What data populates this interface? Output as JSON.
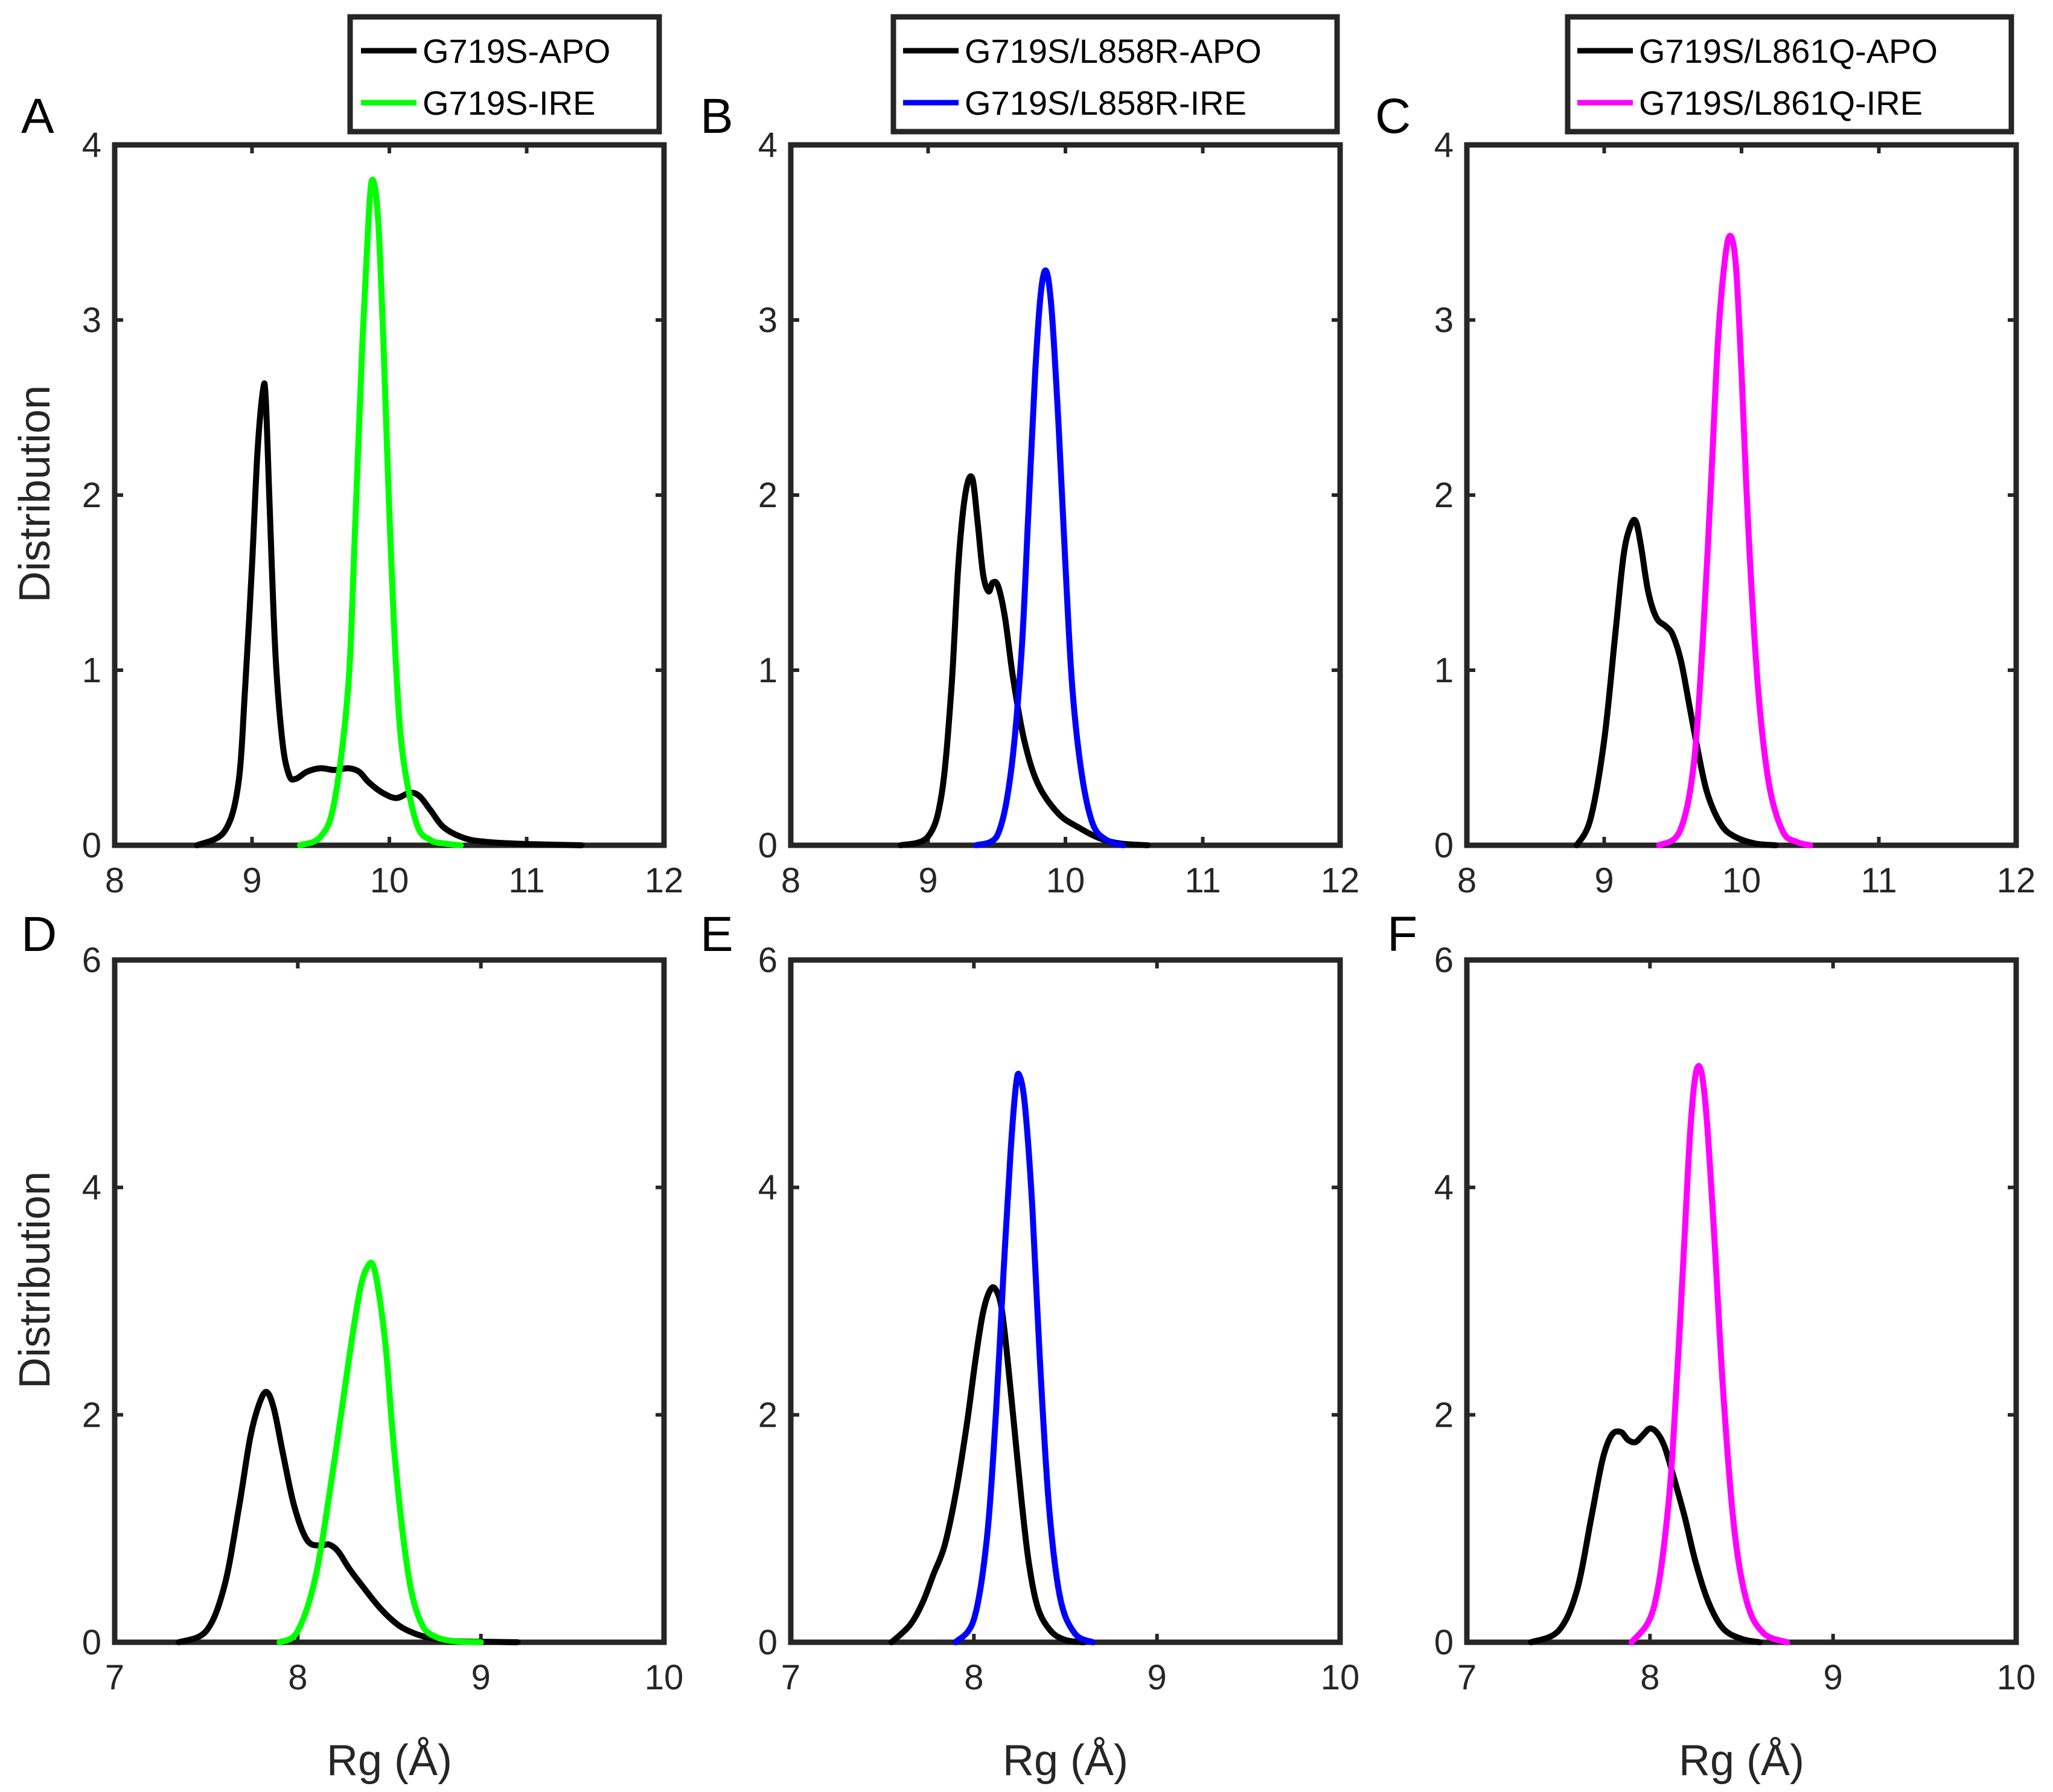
{
  "colors": {
    "apo": "#000000",
    "ire_A": "#00ff00",
    "ire_B": "#0000ff",
    "ire_C": "#ff00ff",
    "frame": "#262626"
  },
  "chart_data": [
    {
      "id": "A",
      "letter": "A",
      "type": "line",
      "xlabel": "",
      "ylabel": "Distribution",
      "xlim": [
        8,
        12
      ],
      "ylim": [
        0,
        4
      ],
      "xticks": [
        8,
        9,
        10,
        11,
        12
      ],
      "yticks": [
        0,
        1,
        2,
        3,
        4
      ],
      "legend_position": "top-right",
      "series": [
        {
          "name": "G719S-APO",
          "color": "#000000",
          "x": [
            8.6,
            8.8,
            8.9,
            8.95,
            9.0,
            9.04,
            9.08,
            9.1,
            9.13,
            9.17,
            9.22,
            9.27,
            9.32,
            9.4,
            9.5,
            9.6,
            9.7,
            9.78,
            9.85,
            9.95,
            10.05,
            10.15,
            10.22,
            10.3,
            10.4,
            10.55,
            10.7,
            10.9,
            11.1,
            11.4
          ],
          "y": [
            0,
            0.08,
            0.35,
            0.9,
            1.6,
            2.25,
            2.6,
            2.55,
            1.9,
            1.1,
            0.6,
            0.4,
            0.38,
            0.42,
            0.44,
            0.43,
            0.44,
            0.42,
            0.36,
            0.3,
            0.27,
            0.3,
            0.28,
            0.2,
            0.1,
            0.04,
            0.02,
            0.01,
            0.005,
            0
          ]
        },
        {
          "name": "G719S-IRE",
          "color": "#00ff00",
          "x": [
            9.35,
            9.5,
            9.6,
            9.7,
            9.75,
            9.8,
            9.85,
            9.88,
            9.92,
            9.96,
            10.0,
            10.05,
            10.1,
            10.2,
            10.3,
            10.4,
            10.52
          ],
          "y": [
            0,
            0.05,
            0.25,
            0.9,
            1.8,
            2.8,
            3.6,
            3.8,
            3.55,
            2.8,
            1.9,
            1.0,
            0.5,
            0.12,
            0.03,
            0.01,
            0
          ]
        }
      ]
    },
    {
      "id": "B",
      "letter": "B",
      "type": "line",
      "xlabel": "",
      "ylabel": "",
      "xlim": [
        8,
        12
      ],
      "ylim": [
        0,
        4
      ],
      "xticks": [
        8,
        9,
        10,
        11,
        12
      ],
      "yticks": [
        0,
        1,
        2,
        3,
        4
      ],
      "legend_position": "top-right",
      "series": [
        {
          "name": "G719S/L858R-APO",
          "color": "#000000",
          "x": [
            8.8,
            9.0,
            9.1,
            9.17,
            9.22,
            9.27,
            9.32,
            9.36,
            9.4,
            9.44,
            9.47,
            9.51,
            9.56,
            9.62,
            9.7,
            9.8,
            9.95,
            10.1,
            10.25,
            10.4,
            10.6
          ],
          "y": [
            0,
            0.05,
            0.3,
            0.9,
            1.6,
            2.0,
            2.1,
            1.85,
            1.55,
            1.45,
            1.5,
            1.48,
            1.3,
            0.95,
            0.6,
            0.35,
            0.18,
            0.1,
            0.04,
            0.01,
            0
          ]
        },
        {
          "name": "G719S/L858R-IRE",
          "color": "#0000ff",
          "x": [
            9.35,
            9.5,
            9.6,
            9.68,
            9.73,
            9.78,
            9.82,
            9.86,
            9.9,
            9.95,
            10.0,
            10.05,
            10.12,
            10.2,
            10.3,
            10.42
          ],
          "y": [
            0,
            0.05,
            0.4,
            1.1,
            1.9,
            2.7,
            3.15,
            3.28,
            3.05,
            2.4,
            1.6,
            0.9,
            0.4,
            0.12,
            0.03,
            0
          ]
        }
      ]
    },
    {
      "id": "C",
      "letter": "C",
      "type": "line",
      "xlabel": "",
      "ylabel": "",
      "xlim": [
        8,
        12
      ],
      "ylim": [
        0,
        4
      ],
      "xticks": [
        8,
        9,
        10,
        11,
        12
      ],
      "yticks": [
        0,
        1,
        2,
        3,
        4
      ],
      "legend_position": "top-right",
      "series": [
        {
          "name": "G719S/L861Q-APO",
          "color": "#000000",
          "x": [
            8.8,
            8.9,
            9.0,
            9.08,
            9.14,
            9.19,
            9.23,
            9.27,
            9.32,
            9.38,
            9.45,
            9.5,
            9.56,
            9.62,
            9.68,
            9.75,
            9.85,
            9.95,
            10.1,
            10.25
          ],
          "y": [
            0,
            0.15,
            0.6,
            1.2,
            1.65,
            1.82,
            1.85,
            1.7,
            1.45,
            1.3,
            1.25,
            1.2,
            1.05,
            0.8,
            0.55,
            0.3,
            0.12,
            0.05,
            0.01,
            0
          ]
        },
        {
          "name": "G719S/L861Q-IRE",
          "color": "#ff00ff",
          "x": [
            9.4,
            9.55,
            9.65,
            9.72,
            9.78,
            9.83,
            9.88,
            9.92,
            9.96,
            10.0,
            10.05,
            10.12,
            10.2,
            10.3,
            10.4,
            10.5
          ],
          "y": [
            0,
            0.08,
            0.45,
            1.2,
            2.1,
            2.9,
            3.35,
            3.48,
            3.3,
            2.7,
            1.8,
            0.9,
            0.35,
            0.08,
            0.02,
            0
          ]
        }
      ]
    },
    {
      "id": "D",
      "letter": "D",
      "type": "line",
      "xlabel": "Rg (Å)",
      "ylabel": "Distribution",
      "xlim": [
        7,
        10
      ],
      "ylim": [
        0,
        6
      ],
      "xticks": [
        7,
        8,
        9,
        10
      ],
      "yticks": [
        0,
        2,
        4,
        6
      ],
      "series": [
        {
          "name": "G719S-APO",
          "color": "#000000",
          "x": [
            7.35,
            7.5,
            7.6,
            7.68,
            7.74,
            7.79,
            7.83,
            7.87,
            7.92,
            7.98,
            8.05,
            8.12,
            8.17,
            8.22,
            8.28,
            8.35,
            8.45,
            8.55,
            8.65,
            8.75,
            8.85,
            9.0,
            9.2
          ],
          "y": [
            0,
            0.1,
            0.5,
            1.2,
            1.8,
            2.1,
            2.2,
            2.05,
            1.65,
            1.2,
            0.9,
            0.85,
            0.86,
            0.8,
            0.65,
            0.5,
            0.3,
            0.15,
            0.07,
            0.03,
            0.01,
            0.005,
            0
          ]
        },
        {
          "name": "G719S-IRE",
          "color": "#00ff00",
          "x": [
            7.9,
            8.0,
            8.1,
            8.2,
            8.28,
            8.34,
            8.38,
            8.41,
            8.44,
            8.48,
            8.52,
            8.57,
            8.62,
            8.68,
            8.75,
            8.85,
            9.0
          ],
          "y": [
            0,
            0.1,
            0.6,
            1.6,
            2.5,
            3.1,
            3.3,
            3.32,
            3.1,
            2.6,
            1.8,
            1.0,
            0.45,
            0.15,
            0.05,
            0.01,
            0
          ]
        }
      ]
    },
    {
      "id": "E",
      "letter": "E",
      "type": "line",
      "xlabel": "Rg (Å)",
      "ylabel": "",
      "xlim": [
        7,
        10
      ],
      "ylim": [
        0,
        6
      ],
      "xticks": [
        7,
        8,
        9,
        10
      ],
      "yticks": [
        0,
        2,
        4,
        6
      ],
      "series": [
        {
          "name": "G719S/L858R-APO",
          "color": "#000000",
          "x": [
            7.55,
            7.65,
            7.72,
            7.78,
            7.84,
            7.9,
            7.96,
            8.01,
            8.05,
            8.09,
            8.12,
            8.15,
            8.18,
            8.22,
            8.26,
            8.3,
            8.35,
            8.42,
            8.5,
            8.6
          ],
          "y": [
            0,
            0.15,
            0.35,
            0.6,
            0.85,
            1.3,
            1.9,
            2.5,
            2.9,
            3.1,
            3.1,
            2.95,
            2.55,
            1.9,
            1.25,
            0.7,
            0.3,
            0.1,
            0.02,
            0
          ]
        },
        {
          "name": "G719S/L858R-IRE",
          "color": "#0000ff",
          "x": [
            7.9,
            8.0,
            8.07,
            8.12,
            8.16,
            8.2,
            8.23,
            8.25,
            8.28,
            8.32,
            8.36,
            8.41,
            8.47,
            8.55,
            8.65
          ],
          "y": [
            0,
            0.2,
            0.9,
            2.0,
            3.2,
            4.3,
            4.9,
            4.98,
            4.7,
            3.8,
            2.5,
            1.2,
            0.4,
            0.08,
            0
          ]
        }
      ]
    },
    {
      "id": "F",
      "letter": "F",
      "type": "line",
      "xlabel": "Rg (Å)",
      "ylabel": "",
      "xlim": [
        7,
        10
      ],
      "ylim": [
        0,
        6
      ],
      "xticks": [
        7,
        8,
        9,
        10
      ],
      "yticks": [
        0,
        2,
        4,
        6
      ],
      "series": [
        {
          "name": "G719S/L861Q-APO",
          "color": "#000000",
          "x": [
            7.35,
            7.5,
            7.6,
            7.68,
            7.74,
            7.79,
            7.84,
            7.88,
            7.92,
            7.96,
            8.0,
            8.04,
            8.08,
            8.13,
            8.19,
            8.25,
            8.32,
            8.4,
            8.5,
            8.6
          ],
          "y": [
            0,
            0.1,
            0.45,
            1.1,
            1.6,
            1.82,
            1.85,
            1.78,
            1.76,
            1.82,
            1.88,
            1.84,
            1.72,
            1.45,
            1.1,
            0.7,
            0.35,
            0.12,
            0.03,
            0
          ]
        },
        {
          "name": "G719S/L861Q-IRE",
          "color": "#ff00ff",
          "x": [
            7.9,
            8.02,
            8.1,
            8.15,
            8.19,
            8.22,
            8.25,
            8.28,
            8.31,
            8.35,
            8.4,
            8.46,
            8.53,
            8.62,
            8.75
          ],
          "y": [
            0,
            0.3,
            1.2,
            2.4,
            3.6,
            4.5,
            5.0,
            5.02,
            4.6,
            3.6,
            2.2,
            1.0,
            0.35,
            0.08,
            0
          ]
        }
      ]
    }
  ]
}
